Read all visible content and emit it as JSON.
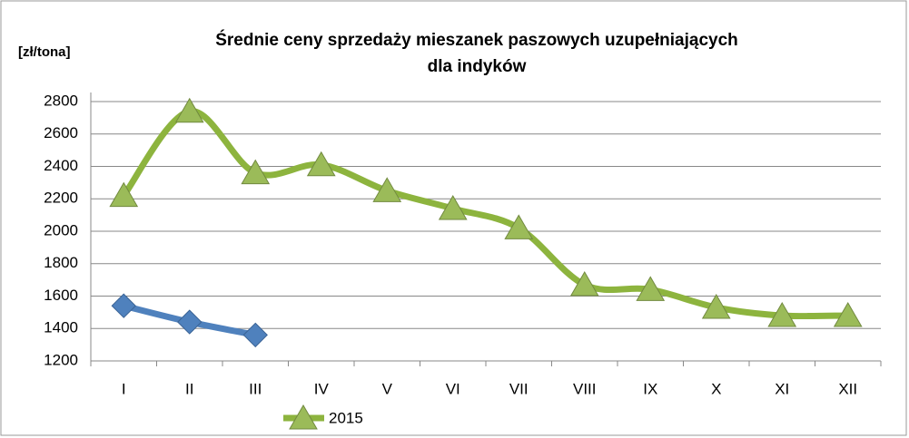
{
  "chart_data": {
    "type": "line",
    "title": [
      "Średnie ceny sprzedaży mieszanek paszowych uzupełniających",
      "dla indyków"
    ],
    "y_label": "[zł/tona]",
    "categories": [
      "I",
      "II",
      "III",
      "IV",
      "V",
      "VI",
      "VII",
      "VIII",
      "IX",
      "X",
      "XI",
      "XII"
    ],
    "series": [
      {
        "name": "2015",
        "color": "#8db43e",
        "marker": "triangle",
        "values": [
          2220,
          2740,
          2360,
          2410,
          2250,
          2140,
          2020,
          1670,
          1640,
          1530,
          1480,
          1480
        ]
      },
      {
        "color": "#4f81bd",
        "marker": "diamond",
        "values": [
          1540,
          1440,
          1360,
          null,
          null,
          null,
          null,
          null,
          null,
          null,
          null,
          null
        ]
      }
    ],
    "ylim": [
      1200,
      2800
    ],
    "yticks": [
      1200,
      1400,
      1600,
      1800,
      2000,
      2200,
      2400,
      2600,
      2800
    ],
    "grid": true,
    "legend": "bottom"
  }
}
